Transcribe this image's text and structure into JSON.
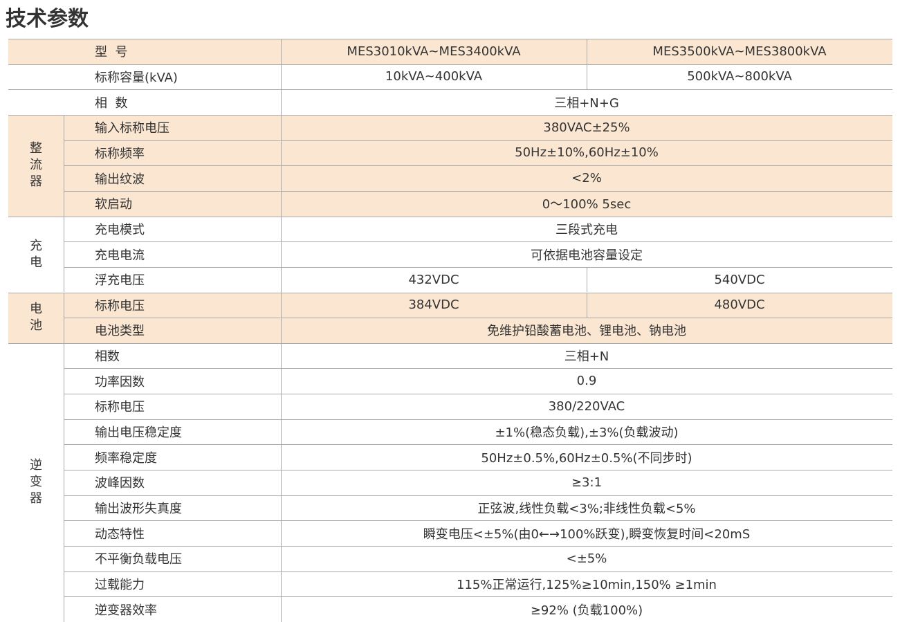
{
  "title": "技术参数",
  "table": {
    "header": {
      "label": "型  号",
      "values": [
        "MES3010kVA~MES3400kVA",
        "MES3500kVA~MES3800kVA"
      ]
    },
    "sections": [
      {
        "rows": [
          {
            "label": "标称容量(kVA)",
            "values": [
              "10kVA~400kVA",
              "500kVA~800kVA"
            ]
          },
          {
            "label": "相  数",
            "values": [
              "三相+N+G"
            ]
          }
        ]
      },
      {
        "group": "整流器",
        "shaded": true,
        "rows": [
          {
            "label": "输入标称电压",
            "values": [
              "380VAC±25%"
            ]
          },
          {
            "label": "标称频率",
            "values": [
              "50Hz±10%,60Hz±10%"
            ]
          },
          {
            "label": "输出纹波",
            "values": [
              "<2%"
            ]
          },
          {
            "label": "软启动",
            "values": [
              "0～100% 5sec"
            ]
          }
        ]
      },
      {
        "group": "充电",
        "rows": [
          {
            "label": "充电模式",
            "values": [
              "三段式充电"
            ]
          },
          {
            "label": "充电电流",
            "values": [
              "可依据电池容量设定"
            ]
          },
          {
            "label": "浮充电压",
            "values": [
              "432VDC",
              "540VDC"
            ]
          }
        ]
      },
      {
        "group": "电池",
        "shaded": true,
        "rows": [
          {
            "label": "标称电压",
            "values": [
              "384VDC",
              "480VDC"
            ]
          },
          {
            "label": "电池类型",
            "values": [
              "免维护铅酸蓄电池、锂电池、钠电池"
            ]
          }
        ]
      },
      {
        "group": "逆变器",
        "rows": [
          {
            "label": "相数",
            "values": [
              "三相+N"
            ]
          },
          {
            "label": "功率因数",
            "values": [
              "0.9"
            ]
          },
          {
            "label": "标称电压",
            "values": [
              "380/220VAC"
            ]
          },
          {
            "label": "输出电压稳定度",
            "values": [
              "±1%(稳态负载),±3%(负载波动)"
            ]
          },
          {
            "label": "频率稳定度",
            "values": [
              "50Hz±0.5%,60Hz±0.5%(不同步时)"
            ]
          },
          {
            "label": "波峰因数",
            "values": [
              "≥3:1"
            ]
          },
          {
            "label": "输出波形失真度",
            "values": [
              "正弦波,线性负载<3%;非线性负载<5%"
            ]
          },
          {
            "label": "动态特性",
            "values": [
              "瞬变电压<±5%(由0←→100%跃变),瞬变恢复时间<20mS"
            ]
          },
          {
            "label": "不平衡负载电压",
            "values": [
              "<±5%"
            ]
          },
          {
            "label": "过载能力",
            "values": [
              "115%正常运行,125%≥10min,150% ≥1min"
            ]
          },
          {
            "label": "逆变器效率",
            "values": [
              "≥92% (负载100%)"
            ]
          }
        ]
      }
    ]
  }
}
